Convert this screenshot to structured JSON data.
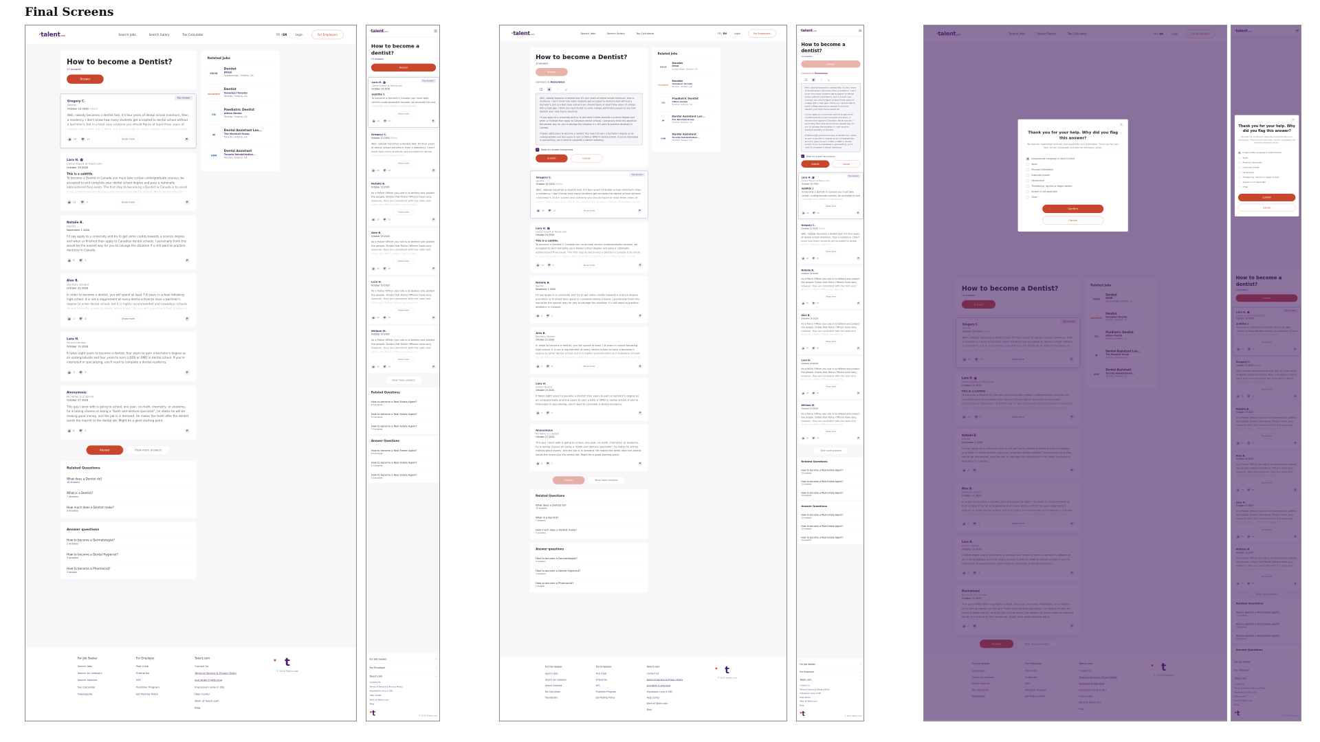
{
  "presentation_title": "Final Screens",
  "brand": {
    "logo": "talent",
    "logo_suffix": ".com",
    "mark": "t",
    "primary": "#4a1f6e",
    "accent": "#c8452e"
  },
  "nav": {
    "links": [
      "Search Jobs",
      "Search Salary",
      "Tax Calculator"
    ],
    "lang_fr": "FR",
    "lang_sep": "|",
    "lang_en": "EN",
    "login": "Login",
    "employers": "For Employers"
  },
  "question": {
    "title": "How to become a Dentist?",
    "mobile_title": "How to become a dentist?",
    "count": "13 answers",
    "answer_button": "Answer"
  },
  "labels": {
    "top_answer": "Top Answer",
    "show_more": "Show more",
    "edited": "Edited",
    "view_more": "View more answers"
  },
  "answers_desktop": [
    {
      "name": "Gregory C.",
      "role": "Dentist",
      "date": "October 19 2020",
      "edited": true,
      "top": true,
      "truncated": true,
      "likes": "24",
      "dislikes": "13",
      "text": "Well, nobody becomes a dentist fast. It's four years of dental school minimum, then a residency. I don't know how many students get accepted to dental school without a bachelor's, but in a best case scenario you should figure at least three years of college with a high gpa. I think you need to talk to some college admissions people."
    },
    {
      "name": "Lara H.",
      "verified": true,
      "role": "Career Expert at Talent.com",
      "date": "October 19 2020",
      "subtitle": "This is a subtitle",
      "truncated": true,
      "likes": "11",
      "dislikes": "5",
      "text": "To become a Dentist in Canada you must take certain undergraduate courses, be accepted to and complete your dental school degree and pass a nationally administered final exam. The first step to becoming a Dentist in Canada is to enroll in an undergraduate degree prior to entering dental school. Most dental schools require it."
    },
    {
      "name": "Natalie B.",
      "role": "Dentist",
      "date": "November 1 2020",
      "likes": "8",
      "dislikes": "1",
      "text": "I'd say apply to a university and try to get some credits towards a science degree and when ur finished then apply to Canadian dental schools. I personally think this would be the easiest way for you to salvage the situation if u still want to practice dentistry in Canada."
    },
    {
      "name": "Alex B.",
      "role": "Dentistry Student",
      "date": "October 21 2020",
      "truncated": true,
      "likes": "2",
      "dislikes": "0",
      "text": "In order to become a dentist, you will spend at least 7-8 years in school following high school. It is not a requirement at every dental school to have a bachelor's degree to enter dental school, but it is highly recommended and nowadays schools do not typically accept students without one. So you will spend your first 4 years in university."
    },
    {
      "name": "Lara H.",
      "role": "Former Dentist",
      "date": "October 19 2020",
      "likes": "3",
      "dislikes": "3",
      "text": "It takes eight years to become a dentist: four years to earn a bachelor's degree as an undergraduate and four years to earn a DDS or DMD in dental school. If you're interested in specializing, you'll need to complete a dental residency."
    },
    {
      "name": "Anonymous",
      "role": "My father is a dentist",
      "date": "October 27 2020",
      "likes": "6",
      "dislikes": "2",
      "text": "This guy I work with is going to school, one year, no math, chemistry, or anatomy, he is taking classes on being a \"tooth and denture specialist\", he states he will be making good money, and the job is in demand. He makes the teeth after the dentist sends the imprint to the dental lab. Might be a good starting point."
    }
  ],
  "answers_mobile": [
    {
      "name": "Lara H.",
      "verified": true,
      "role": "Career Expert at Talent.com",
      "date": "October 19 2020",
      "subtitle": "Subtitle 1",
      "top": true,
      "truncated": true,
      "likes": "24",
      "dislikes": "13",
      "text": "To become a Dentist in Canada you must take certain undergraduate courses, be accepted to and complete your dental school degree."
    },
    {
      "name": "Gregory C.",
      "date": "October 23 2020",
      "edited": true,
      "truncated": true,
      "likes": "15",
      "dislikes": "13",
      "text": "Well, nobody becomes a dentist fast. It's four years of dental school minimum, then a residency. I don't know how many students get accepted to dental school without a bachelor's."
    },
    {
      "name": "Natalie B.",
      "date": "October 19 2020",
      "truncated": true,
      "likes": "15",
      "dislikes": "13",
      "text": "As a Police Officer you role is to defend and protect the people. Duties that Police Officers have vary, however, they are consistent with the roots and ethics of a Police Officer you need to."
    },
    {
      "name": "Alex B.",
      "date": "October 19 2020",
      "truncated": true,
      "likes": "15",
      "dislikes": "13",
      "text": "As a Police Officer you role is to defend and protect the people. Duties that Police Officers have vary, however, they are consistent with the roots and ethics of a Police Officer you need to."
    },
    {
      "name": "Lara H.",
      "date": "October 19 2020",
      "truncated": true,
      "likes": "15",
      "dislikes": "13",
      "text": "As a Police Officer you role is to defend and protect the people. Duties that Police Officers have vary, however, they are consistent with the roots and ethics of a Police Officer you need to."
    },
    {
      "name": "William M.",
      "date": "October 19 2020",
      "truncated": true,
      "likes": "15",
      "dislikes": "13",
      "text": "As a Police Officer you role is to defend and protect the people. Duties that Police Officers have vary, however, they are consistent with the roots and ethics of a Police Officer you need to."
    }
  ],
  "related_jobs": {
    "title": "Related Jobs",
    "items": [
      {
        "logo": "MDSB",
        "logo_color": "#5b6b8c",
        "title": "Dentist",
        "company": "MDSB",
        "location": "Scarborough, Ontario, CA"
      },
      {
        "logo": "volunteer",
        "logo_color": "#e07a3a",
        "title": "Dentist",
        "company": "Volunteer Toronto",
        "location": "Toronto, Ontario, CA"
      },
      {
        "logo": "CBI",
        "logo_color": "#2a8a7a",
        "title": "Paediatric Dentist",
        "company": "Altima Dental",
        "location": "Toronto, Ontario, CA"
      },
      {
        "logo": "M",
        "logo_color": "#3a2a4a",
        "title": "Dental Assistant Lev...",
        "company": "The Marshall Group",
        "location": "Toronto, Ontario, CA"
      },
      {
        "logo": "UHN",
        "logo_color": "#2a5aa8",
        "title": "Dental Assistant",
        "company": "Toronto Rehabilitation...",
        "location": "Toronto, Ontario, CA"
      }
    ]
  },
  "related_questions": {
    "title": "Related Questions",
    "items": [
      {
        "q": "What does a Dentist do?",
        "count": "18 answers"
      },
      {
        "q": "What is a Dentist?",
        "count": "7 answers"
      },
      {
        "q": "How much does a Dentist make?",
        "count": "3 answers"
      }
    ]
  },
  "answer_questions": {
    "title": "Answer questions",
    "items": [
      {
        "q": "How to become a Dermatologist?",
        "count": "2 answers"
      },
      {
        "q": "How to become a Dental Hygienist?",
        "count": "3 answers"
      },
      {
        "q": "How to become a Pharmacist?",
        "count": "1 answer"
      }
    ]
  },
  "mobile_related_questions": {
    "title": "Related Questions",
    "items": [
      {
        "q": "How to become a Real Estate Agent?",
        "count": "13 answers"
      },
      {
        "q": "How to become a Real Estate Agent?",
        "count": "13 answers"
      },
      {
        "q": "How to become a Real Estate Agent?",
        "count": "13 answers"
      }
    ]
  },
  "mobile_answer_questions": {
    "title": "Answer Questions",
    "items": [
      {
        "q": "How to become a Real Estate Agent?",
        "count": "13 answers"
      },
      {
        "q": "How to become a Real Estate Agent?",
        "count": "13 answers"
      },
      {
        "q": "How to become a Real Estate Agent?",
        "count": "13 answers"
      }
    ]
  },
  "answer_form": {
    "comment_as": "Comment as",
    "identity": "Anonymous",
    "toolbar": {
      "bold": "B",
      "italic": "I",
      "underline": "U"
    },
    "paragraphs": [
      "Well, nobody becomes a dentist fast. It's four years of dental school minimum, then a residency. I don't know how many students get accepted to dental school without a bachelor's, but in a best case scenario you should figure at least three years of college with a high gpa. I think you need to talk to some college admissions people to see how realistic your time frame would be.",
      "I'd say apply to a university and try to get some credits towards a science degree and when ur finished then apply to Canadian dental schools. I personally think this would be the easiest way for you to salvage the situation if u still want to practice dentistry in Canada.",
      "It takes eight years to become a dentist: four years to earn a bachelor's degree as an undergraduate and four years to earn a DDS or DMD in dental school. If you're interested in specializing, you'll need to complete a dental residency."
    ],
    "anonymous_checked": true,
    "anonymous_label": "Keep my answer anonymous",
    "submit": "Submit",
    "cancel": "Cancel"
  },
  "flag_modal": {
    "title": "Thank you for your help. Why did you flag this answer?",
    "description": "We take our moderation seriously and appreciate your submission. Thank you for your help, we will investigate and take the necessary action.",
    "options": [
      "Inappropriate Language or Adult Content",
      "Spam",
      "Personal Information",
      "Duplicate Answer",
      "Harassment",
      "Threatening, harmful or illegal content",
      "Answer is not applicable",
      "Other"
    ],
    "selected": 0,
    "confirm": "Confirm",
    "cancel": "Cancel"
  },
  "footer": {
    "columns": [
      {
        "title": "For Job Seeker",
        "links": [
          "Search Jobs",
          "Search by category",
          "Search Salaries",
          "Tax Calculator",
          "Talentpedia"
        ]
      },
      {
        "title": "For Employer",
        "links": [
          "Post a Job",
          "Enterprise",
          "ATS",
          "Publisher Program",
          "Job Posting Policy"
        ]
      },
      {
        "title": "Talent.com",
        "links": [
          "Contact Us",
          "Terms of Service & Privacy Policy",
          "and when it gets long",
          "Impressum (only in DE)",
          "Help Center",
          "Work at Talent.com",
          "Blog"
        ]
      }
    ],
    "mobile_links": [
      "Contact Us",
      "Terms of Service & Privacy Policy",
      "Impressum (only in DE)",
      "Help Center",
      "Work at Talent.com",
      "Blog"
    ],
    "copyright": "© 2020 Talent.com"
  }
}
